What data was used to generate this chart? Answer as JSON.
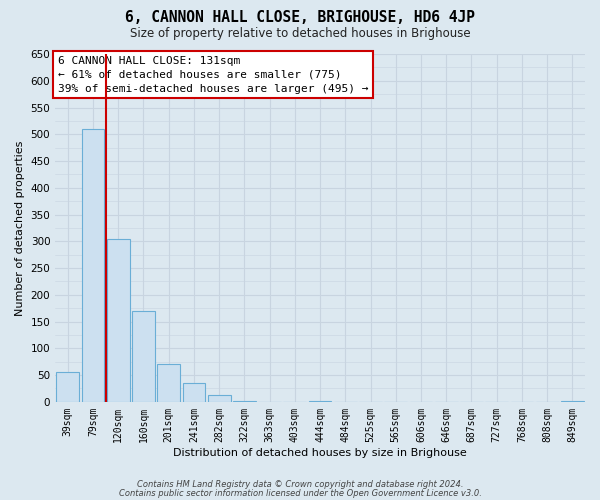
{
  "title": "6, CANNON HALL CLOSE, BRIGHOUSE, HD6 4JP",
  "subtitle": "Size of property relative to detached houses in Brighouse",
  "xlabel": "Distribution of detached houses by size in Brighouse",
  "ylabel": "Number of detached properties",
  "bar_values": [
    55,
    510,
    305,
    170,
    70,
    35,
    12,
    1,
    0,
    0,
    1,
    0,
    0,
    0,
    0,
    0,
    0,
    0,
    0,
    0,
    1
  ],
  "categories": [
    "39sqm",
    "79sqm",
    "120sqm",
    "160sqm",
    "201sqm",
    "241sqm",
    "282sqm",
    "322sqm",
    "363sqm",
    "403sqm",
    "444sqm",
    "484sqm",
    "525sqm",
    "565sqm",
    "606sqm",
    "646sqm",
    "687sqm",
    "727sqm",
    "768sqm",
    "808sqm",
    "849sqm"
  ],
  "bar_color": "#cce0f0",
  "bar_edge_color": "#6aaed6",
  "vline_x": 1.5,
  "vline_color": "#cc0000",
  "ylim": [
    0,
    650
  ],
  "yticks": [
    0,
    50,
    100,
    150,
    200,
    250,
    300,
    350,
    400,
    450,
    500,
    550,
    600,
    650
  ],
  "annotation_line1": "6 CANNON HALL CLOSE: 131sqm",
  "annotation_line2": "← 61% of detached houses are smaller (775)",
  "annotation_line3": "39% of semi-detached houses are larger (495) →",
  "annotation_box_color": "#ffffff",
  "annotation_border_color": "#cc0000",
  "grid_color": "#c8d4e0",
  "bg_color": "#dce8f0",
  "footer1": "Contains HM Land Registry data © Crown copyright and database right 2024.",
  "footer2": "Contains public sector information licensed under the Open Government Licence v3.0."
}
